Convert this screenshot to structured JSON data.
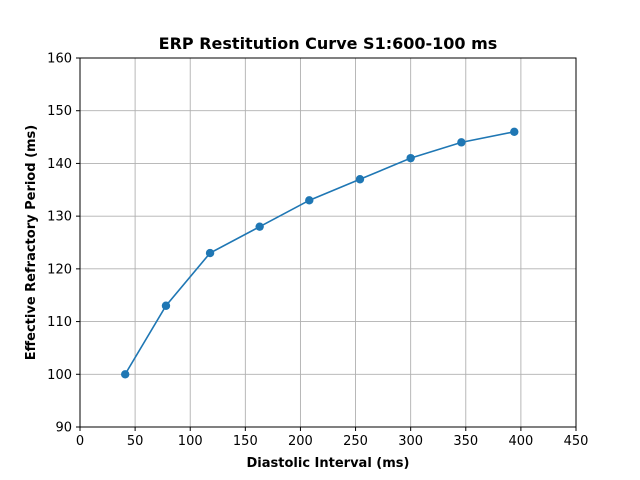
{
  "chart_data": {
    "type": "line",
    "title": "ERP Restitution Curve S1:600-100 ms",
    "xlabel": "Diastolic Interval (ms)",
    "ylabel": "Effective Refractory Period (ms)",
    "xlim": [
      0,
      450
    ],
    "ylim": [
      90,
      160
    ],
    "xticks": [
      "0",
      "50",
      "100",
      "150",
      "200",
      "250",
      "300",
      "350",
      "400",
      "450"
    ],
    "yticks": [
      "90",
      "100",
      "110",
      "120",
      "130",
      "140",
      "150",
      "160"
    ],
    "grid": true,
    "series": [
      {
        "color": "#1f77b4",
        "marker": "circle",
        "x": [
          41,
          78,
          118,
          163,
          208,
          254,
          300,
          346,
          394
        ],
        "y": [
          100,
          113,
          123,
          128,
          133,
          137,
          141,
          144,
          146
        ]
      }
    ]
  }
}
